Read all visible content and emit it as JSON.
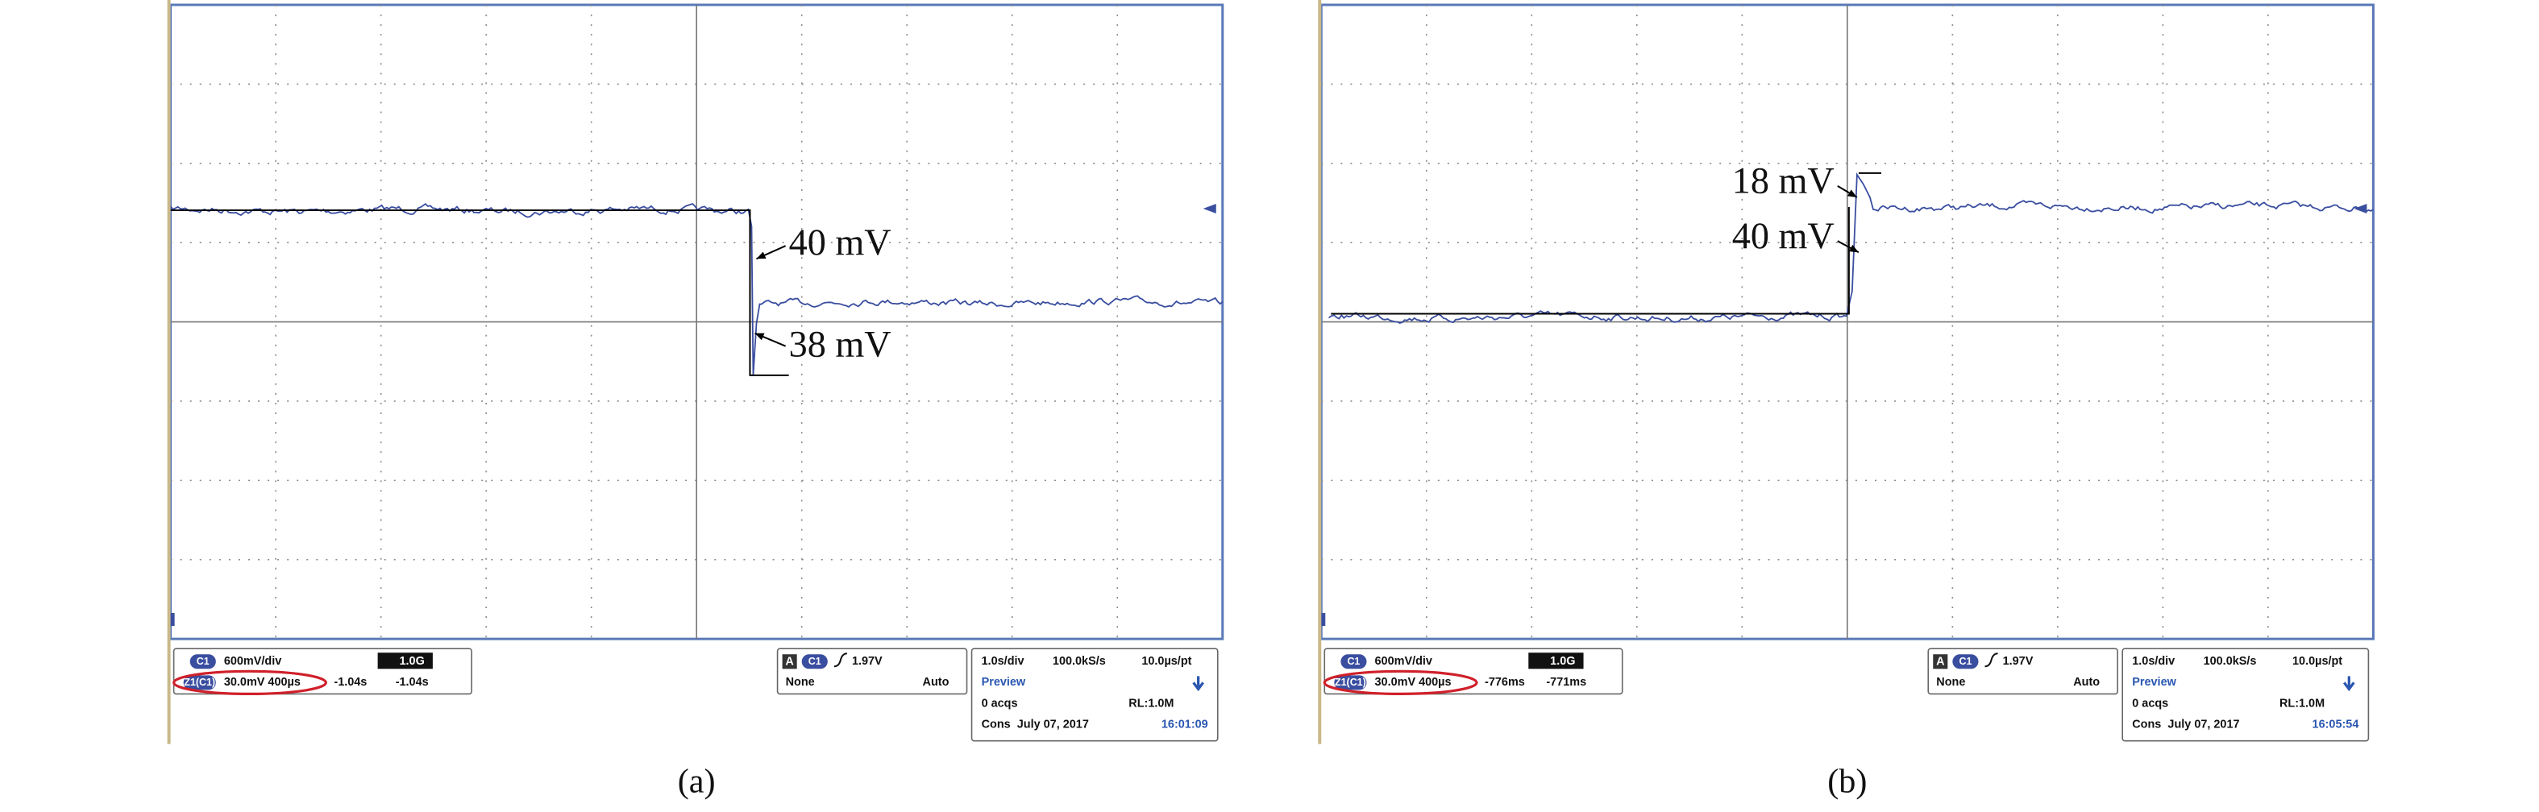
{
  "panels": [
    {
      "label": "(a)",
      "annotations": [
        "40 mV",
        "38 mV"
      ],
      "channel": {
        "badge": "C1",
        "scale": "600mV/div",
        "bw": "1.0G",
        "zoom_badge": "Z1(C1)",
        "zoom": "30.0mV 400µs",
        "pos1": "-1.04s",
        "pos2": "-1.04s"
      },
      "trigger": {
        "mode_badge": "A",
        "source": "C1",
        "level": "1.97V",
        "coupling": "None",
        "mode": "Auto"
      },
      "acquisition": {
        "timebase": "1.0s/div",
        "rate": "100.0kS/s",
        "resolution": "10.0µs/pt",
        "status": "Preview",
        "acqs": "0 acqs",
        "record": "RL:1.0M",
        "cons": "Cons",
        "date": "July 07, 2017",
        "time": "16:01:09"
      }
    },
    {
      "label": "(b)",
      "annotations": [
        "18 mV",
        "40 mV"
      ],
      "channel": {
        "badge": "C1",
        "scale": "600mV/div",
        "bw": "1.0G",
        "zoom_badge": "Z1(C1)",
        "zoom": "30.0mV 400µs",
        "pos1": "-776ms",
        "pos2": "-771ms"
      },
      "trigger": {
        "mode_badge": "A",
        "source": "C1",
        "level": "1.97V",
        "coupling": "None",
        "mode": "Auto"
      },
      "acquisition": {
        "timebase": "1.0s/div",
        "rate": "100.0kS/s",
        "resolution": "10.0µs/pt",
        "status": "Preview",
        "acqs": "0 acqs",
        "record": "RL:1.0M",
        "cons": "Cons",
        "date": "July 07, 2017",
        "time": "16:05:54"
      }
    }
  ]
}
